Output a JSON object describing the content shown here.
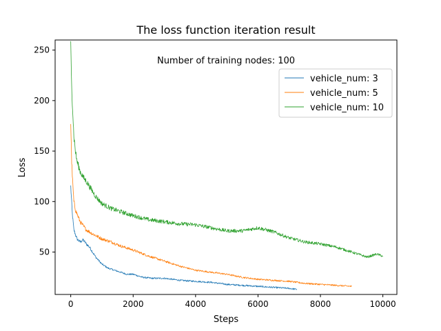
{
  "chart_data": {
    "type": "line",
    "title": "The loss function iteration result",
    "xlabel": "Steps",
    "ylabel": "Loss",
    "xlim": [
      -500,
      10450
    ],
    "ylim": [
      8,
      260
    ],
    "xticks": [
      0,
      2000,
      4000,
      6000,
      8000,
      10000
    ],
    "yticks": [
      50,
      100,
      150,
      200,
      250
    ],
    "grid": false,
    "legend_position": "upper-right",
    "annotation": {
      "text": "Number of training nodes: 100",
      "color": "#0000ff"
    },
    "series": [
      {
        "name": "vehicle_num: 3",
        "color": "#1f77b4",
        "x": [
          0,
          50,
          100,
          200,
          300,
          400,
          500,
          600,
          800,
          1000,
          1200,
          1500,
          1800,
          2000,
          2300,
          2600,
          3000,
          3500,
          4000,
          4500,
          5000,
          5500,
          6000,
          6500,
          7000,
          7250
        ],
        "y": [
          115,
          88,
          72,
          63,
          60,
          62,
          58,
          55,
          45,
          38,
          34,
          31,
          28,
          28,
          25,
          24,
          24,
          22,
          21,
          20,
          18,
          17,
          16,
          15,
          14,
          13
        ]
      },
      {
        "name": "vehicle_num: 5",
        "color": "#ff7f0e",
        "x": [
          0,
          30,
          60,
          100,
          150,
          200,
          300,
          400,
          500,
          700,
          1000,
          1300,
          1600,
          2000,
          2500,
          3000,
          3500,
          4000,
          4500,
          5000,
          5500,
          6000,
          6500,
          7000,
          7500,
          8000,
          8500,
          9000
        ],
        "y": [
          178,
          140,
          120,
          100,
          92,
          88,
          80,
          76,
          72,
          68,
          63,
          60,
          56,
          52,
          46,
          41,
          36,
          32,
          30,
          28,
          25,
          23,
          22,
          21,
          19,
          18,
          17,
          16
        ]
      },
      {
        "name": "vehicle_num: 10",
        "color": "#2ca02c",
        "x": [
          0,
          20,
          50,
          100,
          150,
          200,
          300,
          400,
          500,
          600,
          800,
          1000,
          1300,
          1600,
          2000,
          2500,
          3000,
          3500,
          4000,
          4500,
          5000,
          5500,
          6000,
          6500,
          7000,
          7500,
          8000,
          8500,
          9000,
          9500,
          9800,
          10000
        ],
        "y": [
          255,
          225,
          200,
          165,
          150,
          140,
          130,
          124,
          120,
          115,
          105,
          98,
          93,
          90,
          86,
          82,
          80,
          78,
          77,
          74,
          71,
          71,
          74,
          70,
          64,
          60,
          58,
          55,
          50,
          45,
          48,
          46
        ]
      }
    ]
  }
}
